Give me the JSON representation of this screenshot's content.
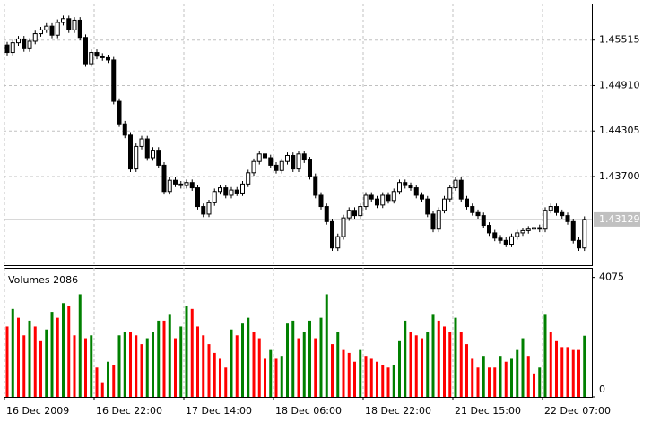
{
  "chart_data": [
    {
      "type": "candlestick",
      "open": [
        1.4545,
        1.4535,
        1.4548,
        1.4553,
        1.454,
        1.455,
        1.456,
        1.4565,
        1.457,
        1.4558,
        1.4575,
        1.458,
        1.4565,
        1.4578,
        1.4555,
        1.452,
        1.4535,
        1.453,
        1.4528,
        1.4525,
        1.447,
        1.444,
        1.4425,
        1.438,
        1.441,
        1.442,
        1.4395,
        1.4405,
        1.4385,
        1.435,
        1.4365,
        1.436,
        1.4358,
        1.4362,
        1.4355,
        1.433,
        1.432,
        1.4335,
        1.435,
        1.4355,
        1.4345,
        1.4352,
        1.4348,
        1.436,
        1.4375,
        1.439,
        1.44,
        1.4395,
        1.4385,
        1.4378,
        1.439,
        1.4398,
        1.438,
        1.44,
        1.4392,
        1.437,
        1.4345,
        1.433,
        1.431,
        1.4275,
        1.429,
        1.4315,
        1.4325,
        1.4318,
        1.433,
        1.4345,
        1.434,
        1.4332,
        1.4345,
        1.4338,
        1.435,
        1.4362,
        1.4358,
        1.4355,
        1.4345,
        1.434,
        1.432,
        1.43,
        1.4325,
        1.434,
        1.4355,
        1.4365,
        1.434,
        1.433,
        1.4322,
        1.4318,
        1.4305,
        1.4295,
        1.4288,
        1.4285,
        1.428,
        1.429,
        1.4295,
        1.4298,
        1.43,
        1.4302,
        1.43,
        1.4325,
        1.433,
        1.4322,
        1.4318,
        1.431,
        1.4285,
        1.4275
      ],
      "high": [
        1.4549,
        1.4552,
        1.4557,
        1.4557,
        1.4554,
        1.4564,
        1.4569,
        1.4574,
        1.4574,
        1.4579,
        1.4584,
        1.4584,
        1.4582,
        1.4582,
        1.4559,
        1.4539,
        1.4539,
        1.4534,
        1.4532,
        1.4529,
        1.4474,
        1.4444,
        1.4429,
        1.4414,
        1.4424,
        1.4424,
        1.4409,
        1.4409,
        1.4389,
        1.4369,
        1.4369,
        1.4364,
        1.4366,
        1.4366,
        1.4359,
        1.4334,
        1.4339,
        1.4354,
        1.4359,
        1.4359,
        1.4356,
        1.4356,
        1.4364,
        1.4379,
        1.4394,
        1.4404,
        1.4404,
        1.4399,
        1.4389,
        1.4394,
        1.4402,
        1.4402,
        1.4404,
        1.4404,
        1.4396,
        1.4374,
        1.4349,
        1.4334,
        1.4314,
        1.4294,
        1.4319,
        1.4329,
        1.4329,
        1.4334,
        1.4349,
        1.4349,
        1.4344,
        1.4349,
        1.4349,
        1.4354,
        1.4366,
        1.4366,
        1.4362,
        1.4359,
        1.4349,
        1.4344,
        1.4324,
        1.4329,
        1.4344,
        1.4359,
        1.4369,
        1.4369,
        1.4344,
        1.4334,
        1.4326,
        1.4322,
        1.4309,
        1.4299,
        1.4292,
        1.4289,
        1.4294,
        1.4299,
        1.4302,
        1.4304,
        1.4306,
        1.4306,
        1.4329,
        1.4334,
        1.4334,
        1.4326,
        1.4322,
        1.4314,
        1.4289,
        1.4317
      ],
      "low": [
        1.4531,
        1.4531,
        1.4544,
        1.4536,
        1.4536,
        1.4546,
        1.4556,
        1.4561,
        1.4554,
        1.4554,
        1.4571,
        1.4561,
        1.4561,
        1.4551,
        1.4516,
        1.4516,
        1.4526,
        1.4524,
        1.4521,
        1.4466,
        1.4436,
        1.4421,
        1.4376,
        1.4376,
        1.4406,
        1.4391,
        1.4391,
        1.4381,
        1.4346,
        1.4346,
        1.4356,
        1.4354,
        1.4354,
        1.4351,
        1.4326,
        1.4316,
        1.4316,
        1.4331,
        1.4346,
        1.4341,
        1.4341,
        1.4344,
        1.4344,
        1.4356,
        1.4371,
        1.4386,
        1.4391,
        1.4381,
        1.4374,
        1.4374,
        1.4386,
        1.4376,
        1.4376,
        1.4388,
        1.4366,
        1.4341,
        1.4326,
        1.4306,
        1.4271,
        1.4271,
        1.4286,
        1.4311,
        1.4314,
        1.4314,
        1.4326,
        1.4336,
        1.4328,
        1.4328,
        1.4334,
        1.4334,
        1.4346,
        1.4354,
        1.4351,
        1.4341,
        1.4336,
        1.4316,
        1.4296,
        1.4296,
        1.4321,
        1.4336,
        1.4351,
        1.4336,
        1.4326,
        1.4318,
        1.4314,
        1.4301,
        1.4291,
        1.4284,
        1.4281,
        1.4276,
        1.4276,
        1.4286,
        1.4291,
        1.4294,
        1.4296,
        1.4296,
        1.4296,
        1.4321,
        1.4318,
        1.4314,
        1.4306,
        1.4281,
        1.4271,
        1.4271
      ],
      "close": [
        1.4535,
        1.4548,
        1.4553,
        1.454,
        1.455,
        1.456,
        1.4565,
        1.457,
        1.4558,
        1.4575,
        1.458,
        1.4565,
        1.4578,
        1.4555,
        1.452,
        1.4535,
        1.453,
        1.4528,
        1.4525,
        1.447,
        1.444,
        1.4425,
        1.438,
        1.441,
        1.442,
        1.4395,
        1.4405,
        1.4385,
        1.435,
        1.4365,
        1.436,
        1.4358,
        1.4362,
        1.4355,
        1.433,
        1.432,
        1.4335,
        1.435,
        1.4355,
        1.4345,
        1.4352,
        1.4348,
        1.436,
        1.4375,
        1.439,
        1.44,
        1.4395,
        1.4385,
        1.4378,
        1.439,
        1.4398,
        1.438,
        1.44,
        1.4392,
        1.437,
        1.4345,
        1.433,
        1.431,
        1.4275,
        1.429,
        1.4315,
        1.4325,
        1.4318,
        1.433,
        1.4345,
        1.434,
        1.4332,
        1.4345,
        1.4338,
        1.435,
        1.4362,
        1.4358,
        1.4355,
        1.4345,
        1.434,
        1.432,
        1.43,
        1.4325,
        1.434,
        1.4355,
        1.4365,
        1.434,
        1.433,
        1.4322,
        1.4318,
        1.4305,
        1.4295,
        1.4288,
        1.4285,
        1.428,
        1.429,
        1.4295,
        1.4298,
        1.43,
        1.4302,
        1.43,
        1.4325,
        1.433,
        1.4322,
        1.4318,
        1.431,
        1.4285,
        1.4275,
        1.4313
      ],
      "up_color": "#ffffff",
      "down_color": "#000000",
      "ylim": [
        1.4252,
        1.46
      ],
      "yticks": [
        {
          "value": 1.437,
          "label": "1.43700"
        },
        1.44305,
        {
          "value": 1.4491,
          "label": "1.44910"
        },
        1.45515
      ],
      "last_price": 1.43129,
      "grid": true
    },
    {
      "type": "bar",
      "title": "Volumes 2086",
      "categories": [
        "16 Dec 2009",
        null,
        null,
        null,
        null,
        null,
        null,
        null,
        null,
        null,
        null,
        null,
        null,
        null,
        null,
        null,
        "16 Dec 22:00",
        null,
        null,
        null,
        null,
        null,
        null,
        null,
        null,
        null,
        null,
        null,
        null,
        null,
        null,
        null,
        "17 Dec 14:00",
        null,
        null,
        null,
        null,
        null,
        null,
        null,
        null,
        null,
        null,
        null,
        null,
        null,
        null,
        null,
        "18 Dec 06:00",
        null,
        null,
        null,
        null,
        null,
        null,
        null,
        null,
        null,
        null,
        null,
        null,
        null,
        null,
        null,
        "18 Dec 22:00",
        null,
        null,
        null,
        null,
        null,
        null,
        null,
        null,
        null,
        null,
        null,
        null,
        null,
        null,
        null,
        "21 Dec 15:00",
        null,
        null,
        null,
        null,
        null,
        null,
        null,
        null,
        null,
        null,
        null,
        null,
        null,
        null,
        null,
        "22 Dec 07:00",
        null,
        null,
        null,
        null,
        null,
        null,
        null
      ],
      "values": [
        2400,
        3000,
        2700,
        2100,
        2600,
        2400,
        1900,
        2300,
        2900,
        2700,
        3200,
        3100,
        2100,
        3500,
        2000,
        2100,
        1000,
        500,
        1200,
        1100,
        2100,
        2200,
        2200,
        2100,
        1800,
        2000,
        2200,
        2600,
        2600,
        2800,
        2000,
        2400,
        3100,
        3000,
        2400,
        2100,
        1800,
        1500,
        1300,
        1000,
        2300,
        2100,
        2500,
        2700,
        2200,
        2000,
        1300,
        1600,
        1300,
        1400,
        2500,
        2600,
        2000,
        2200,
        2600,
        2000,
        2700,
        3500,
        1800,
        2200,
        1600,
        1500,
        1200,
        1600,
        1400,
        1300,
        1200,
        1100,
        1000,
        1100,
        1900,
        2600,
        2200,
        2100,
        2000,
        2200,
        2800,
        2600,
        2400,
        2200,
        2700,
        2200,
        1800,
        1300,
        1000,
        1400,
        1000,
        1000,
        1400,
        1200,
        1300,
        1600,
        2000,
        1400,
        800,
        1000,
        2800,
        2200,
        1900,
        1700,
        1700,
        1600,
        1600,
        2086
      ],
      "up_color": "#008000",
      "down_color": "#ff0000",
      "ylim": [
        0,
        4400
      ],
      "yticks": [
        0,
        4075
      ]
    }
  ]
}
